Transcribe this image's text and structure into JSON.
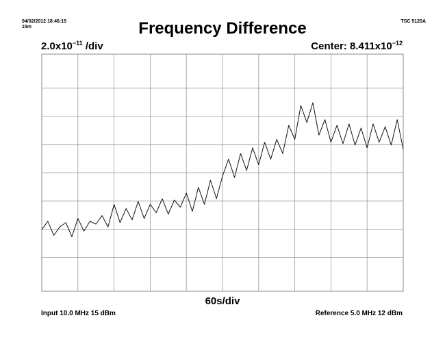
{
  "header": {
    "timestamp": "04/02/2012 18:46:15",
    "span": "15m",
    "model": "TSC 5120A",
    "title": "Frequency Difference"
  },
  "scale": {
    "mantissa": "2.0x10",
    "exponent": "−11",
    "unit": " /div"
  },
  "center": {
    "label": "Center: 8.411x10",
    "exponent": "−12"
  },
  "footer": {
    "time_per_div": "60s/div",
    "input": "Input 10.0 MHz 15 dBm",
    "reference": "Reference 5.0 MHz 12 dBm"
  },
  "chart_data": {
    "type": "line",
    "title": "Frequency Difference",
    "x_unit": "s",
    "y_unit": "fractional frequency",
    "xlim": [
      0,
      600
    ],
    "ylim": [
      -7.5589e-11,
      9.2411e-11
    ],
    "y_center": 8.411e-12,
    "y_per_div": 2e-11,
    "x_per_div": 60,
    "grid": true,
    "series": [
      {
        "x": [
          0,
          10,
          20,
          30,
          40,
          50,
          60,
          70,
          80,
          90,
          100,
          110,
          120,
          130,
          140,
          150,
          160,
          170,
          180,
          190,
          200,
          210,
          220,
          230,
          240,
          250,
          260,
          270,
          280,
          290,
          300,
          310,
          320,
          330,
          340,
          350,
          360,
          370,
          380,
          390,
          400,
          410,
          420,
          430,
          440,
          450,
          460,
          470,
          480,
          490,
          500,
          510,
          520,
          530,
          540,
          550,
          560,
          570,
          580,
          590,
          600
        ],
        "values": [
          -3.2e-11,
          -2.6e-11,
          -3.6e-11,
          -3e-11,
          -2.7e-11,
          -3.7e-11,
          -2.4e-11,
          -3.3e-11,
          -2.6e-11,
          -2.8e-11,
          -2.2e-11,
          -3e-11,
          -1.4e-11,
          -2.7e-11,
          -1.7e-11,
          -2.5e-11,
          -1.2e-11,
          -2.4e-11,
          -1.4e-11,
          -2e-11,
          -1e-11,
          -2.1e-11,
          -1.1e-11,
          -1.6e-11,
          -6e-12,
          -1.9e-11,
          -2e-12,
          -1.4e-11,
          3e-12,
          -1e-11,
          6e-12,
          1.8e-11,
          5e-12,
          2.2e-11,
          1e-11,
          2.6e-11,
          1.4e-11,
          3e-11,
          1.8e-11,
          3.2e-11,
          2.2e-11,
          4.2e-11,
          3.2e-11,
          5.6e-11,
          4.4e-11,
          5.8e-11,
          3.5e-11,
          4.6e-11,
          3e-11,
          4.2e-11,
          2.9e-11,
          4.3e-11,
          2.8e-11,
          4e-11,
          2.6e-11,
          4.3e-11,
          3e-11,
          4.1e-11,
          2.8e-11,
          4.6e-11,
          2.5e-11
        ]
      }
    ]
  }
}
